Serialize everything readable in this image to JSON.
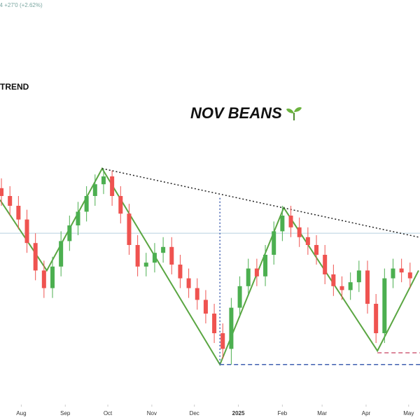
{
  "chart_data": {
    "type": "candlestick",
    "header": "'4 +27'0 (+2.62%)",
    "label": "TREND",
    "title": "NOV BEANS",
    "xlim": [
      -15,
      281
    ],
    "ylim": [
      950,
      1150
    ],
    "xticks": [
      {
        "value": 0,
        "label": "Aug"
      },
      {
        "value": 31,
        "label": "Sep"
      },
      {
        "value": 61,
        "label": "Oct"
      },
      {
        "value": 92,
        "label": "Nov"
      },
      {
        "value": 122,
        "label": "Dec"
      },
      {
        "value": 153,
        "label": "2025"
      },
      {
        "value": 184,
        "label": "Feb"
      },
      {
        "value": 212,
        "label": "Mar"
      },
      {
        "value": 243,
        "label": "Apr"
      },
      {
        "value": 273,
        "label": "May"
      }
    ],
    "up_color": "#4caf50",
    "down_color": "#ef5350",
    "x": [
      -14,
      -8,
      -2,
      4,
      10,
      16,
      22,
      28,
      34,
      40,
      46,
      52,
      58,
      64,
      70,
      76,
      82,
      88,
      94,
      100,
      106,
      112,
      118,
      124,
      130,
      136,
      142,
      148,
      154,
      160,
      166,
      172,
      178,
      184,
      190,
      196,
      202,
      208,
      214,
      220,
      226,
      232,
      238,
      244,
      250,
      256,
      262,
      268,
      274
    ],
    "open": [
      1054,
      1050,
      1045,
      1038,
      1026,
      1012,
      1003,
      1014,
      1027,
      1035,
      1042,
      1050,
      1056,
      1060,
      1050,
      1041,
      1025,
      1014,
      1016,
      1021,
      1024,
      1015,
      1008,
      1003,
      997,
      990,
      980,
      972,
      993,
      1004,
      1013,
      1009,
      1020,
      1032,
      1040,
      1034,
      1029,
      1025,
      1020,
      1010,
      1004,
      1002,
      1006,
      1012,
      995,
      980,
      1008,
      1013,
      1011
    ],
    "high": [
      1059,
      1055,
      1050,
      1043,
      1031,
      1017,
      1019,
      1032,
      1040,
      1047,
      1055,
      1061,
      1064,
      1063,
      1055,
      1046,
      1030,
      1021,
      1026,
      1029,
      1029,
      1020,
      1013,
      1008,
      1002,
      995,
      985,
      998,
      1009,
      1018,
      1018,
      1025,
      1037,
      1045,
      1045,
      1039,
      1034,
      1030,
      1025,
      1015,
      1009,
      1011,
      1017,
      1017,
      1000,
      1013,
      1018,
      1018,
      1016
    ],
    "low": [
      1045,
      1040,
      1033,
      1021,
      1007,
      998,
      998,
      1009,
      1022,
      1030,
      1037,
      1045,
      1051,
      1045,
      1036,
      1020,
      1009,
      1009,
      1011,
      1016,
      1010,
      1003,
      998,
      992,
      985,
      975,
      967,
      964,
      988,
      999,
      1004,
      1004,
      1015,
      1027,
      1029,
      1024,
      1020,
      1015,
      1005,
      999,
      997,
      997,
      1001,
      990,
      975,
      975,
      1003,
      1006,
      1003
    ],
    "close": [
      1050,
      1045,
      1038,
      1026,
      1012,
      1003,
      1014,
      1027,
      1035,
      1042,
      1050,
      1056,
      1060,
      1050,
      1041,
      1025,
      1014,
      1016,
      1021,
      1024,
      1015,
      1008,
      1003,
      997,
      990,
      980,
      972,
      993,
      1004,
      1013,
      1009,
      1020,
      1032,
      1040,
      1034,
      1029,
      1025,
      1020,
      1010,
      1004,
      1002,
      1006,
      1012,
      995,
      980,
      1008,
      1013,
      1011,
      1008
    ],
    "overlays": [
      {
        "color": "#cfe0ea",
        "style": "solid",
        "x": [
          -15,
          281
        ],
        "values": [
          1031,
          1031
        ]
      },
      {
        "color": "#5aa642",
        "style": "solid",
        "x": [
          -15,
          18,
          57,
          140,
          185,
          251,
          280
        ],
        "values": [
          1048,
          1012,
          1064,
          964,
          1044,
          971,
          1012
        ]
      },
      {
        "color": "#222222",
        "style": "dotted",
        "x": [
          57,
          280
        ],
        "values": [
          1064,
          1029
        ]
      },
      {
        "color": "#3f5fb0",
        "style": "dotted",
        "x": [
          140,
          140
        ],
        "values": [
          1049,
          964
        ]
      },
      {
        "color": "#3f5fb0",
        "style": "dashed",
        "x": [
          140,
          281
        ],
        "values": [
          964,
          964
        ]
      },
      {
        "color": "#d0607a",
        "style": "dashed",
        "x": [
          251,
          281
        ],
        "values": [
          970,
          970
        ]
      }
    ]
  }
}
